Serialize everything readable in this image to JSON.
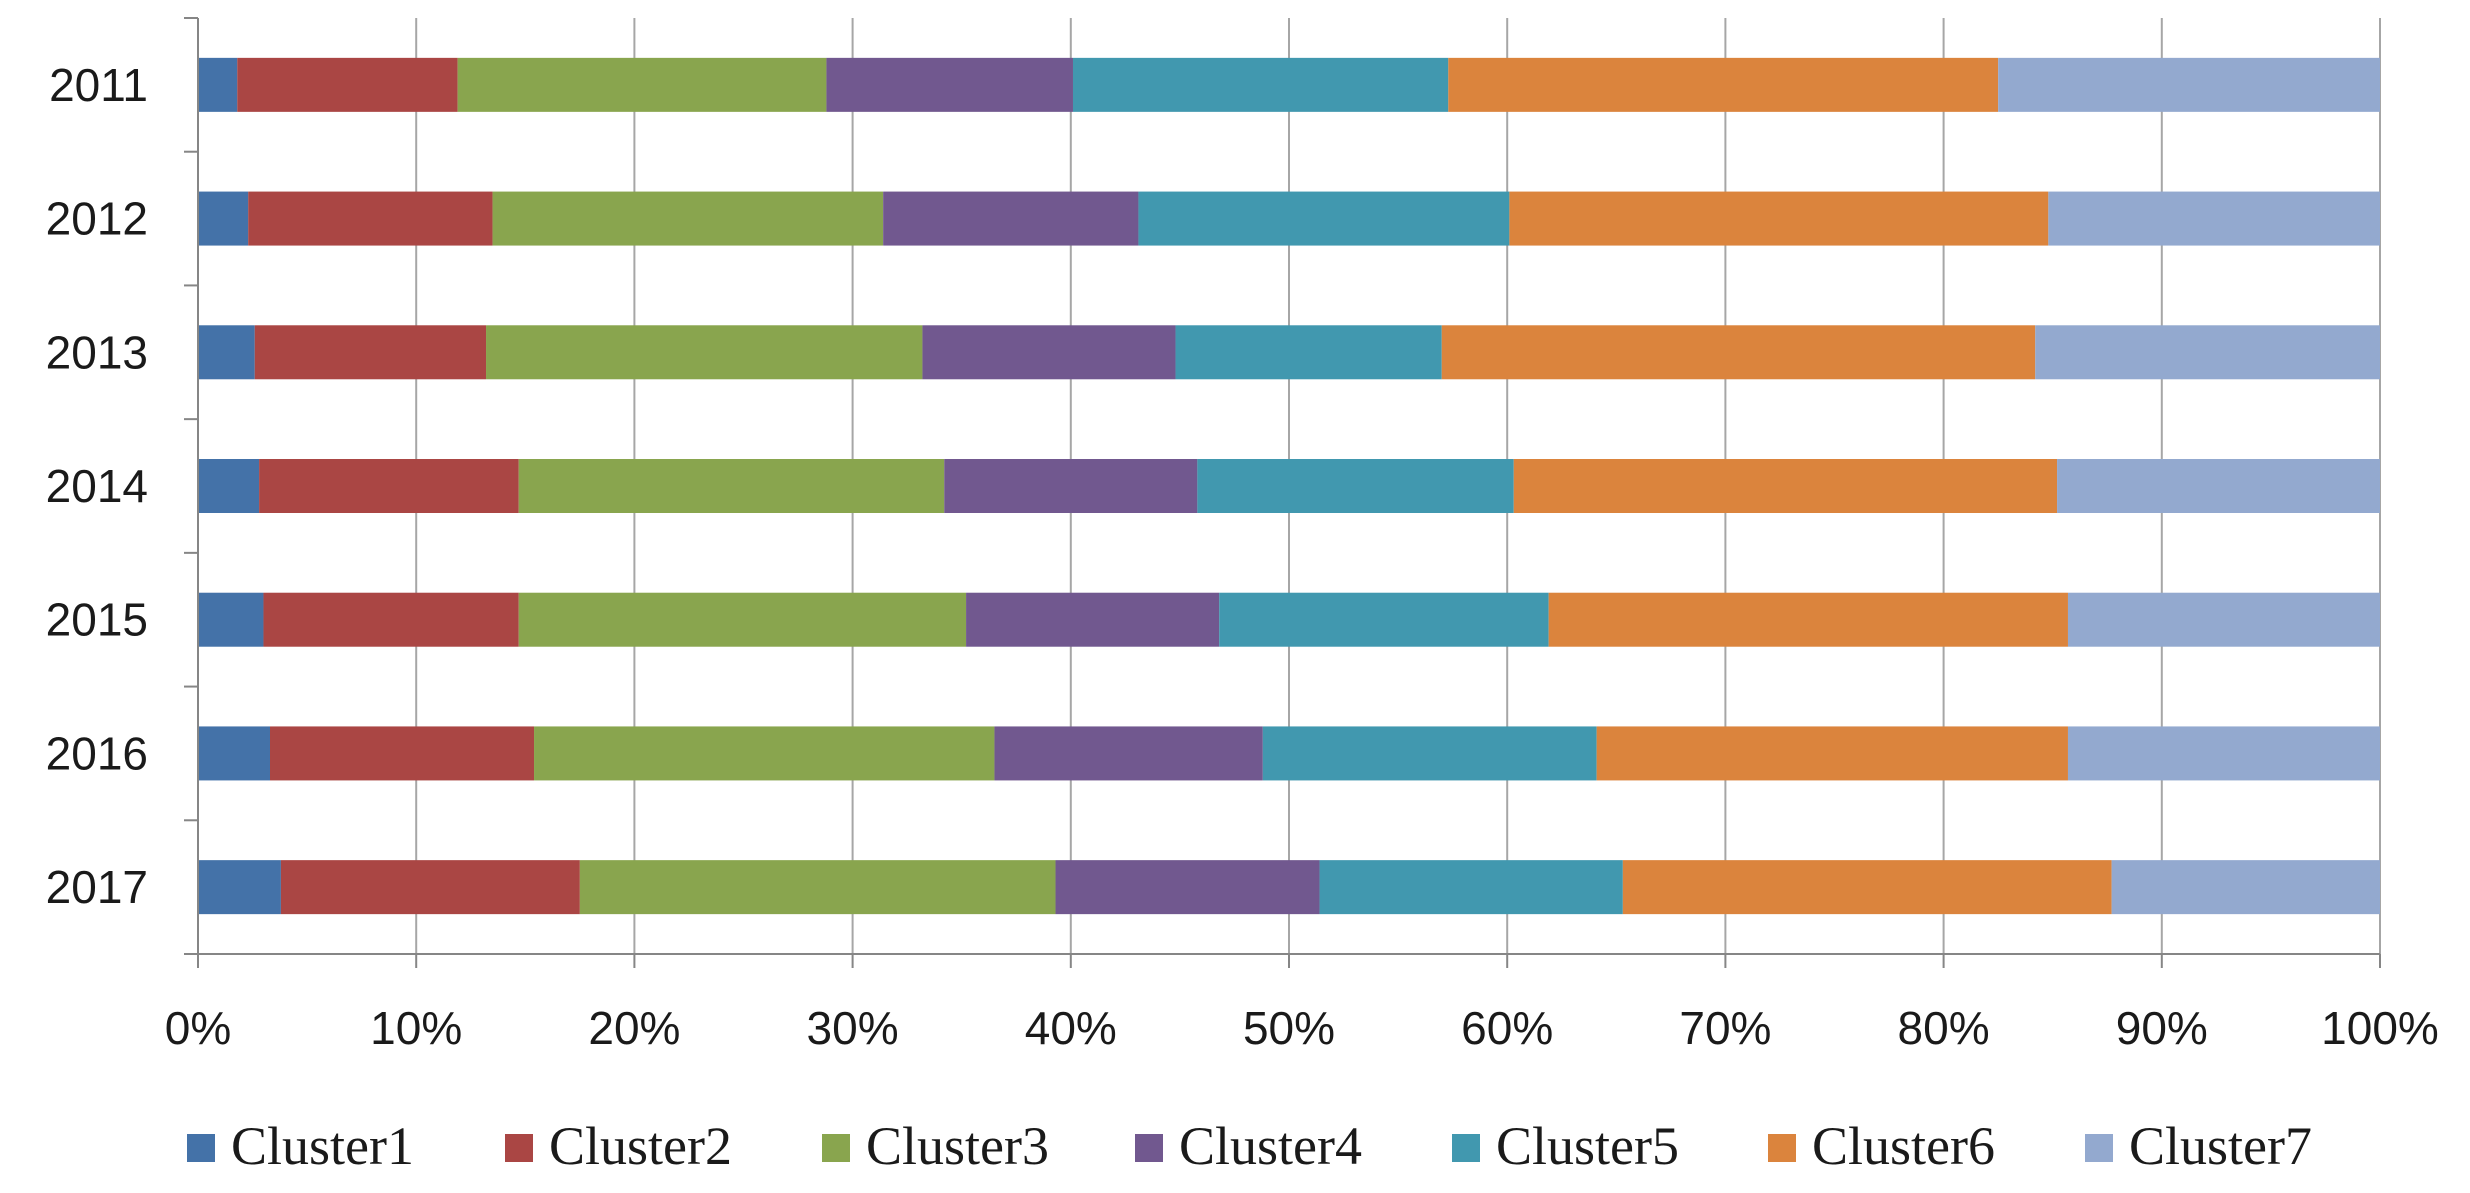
{
  "chart_data": {
    "type": "bar",
    "orientation": "horizontal",
    "stacking": "percent",
    "title": "",
    "xlabel": "",
    "ylabel": "",
    "xlim": [
      0,
      100
    ],
    "x_ticks": [
      "0%",
      "10%",
      "20%",
      "30%",
      "40%",
      "50%",
      "60%",
      "70%",
      "80%",
      "90%",
      "100%"
    ],
    "grid": true,
    "legend_position": "bottom",
    "categories": [
      "2011",
      "2012",
      "2013",
      "2014",
      "2015",
      "2016",
      "2017"
    ],
    "series": [
      {
        "name": "Cluster1",
        "color": "#4472a8",
        "values": [
          1.8,
          2.3,
          2.6,
          2.8,
          3.0,
          3.3,
          3.8
        ]
      },
      {
        "name": "Cluster2",
        "color": "#aa4644",
        "values": [
          10.1,
          11.2,
          10.6,
          11.9,
          11.7,
          12.1,
          13.7
        ]
      },
      {
        "name": "Cluster3",
        "color": "#89a54e",
        "values": [
          16.9,
          17.9,
          20.0,
          19.5,
          20.5,
          21.1,
          21.8
        ]
      },
      {
        "name": "Cluster4",
        "color": "#71588f",
        "values": [
          11.3,
          11.7,
          11.6,
          11.6,
          11.6,
          12.3,
          12.1
        ]
      },
      {
        "name": "Cluster5",
        "color": "#4198af",
        "values": [
          17.2,
          17.0,
          12.2,
          14.5,
          15.1,
          15.3,
          13.9
        ]
      },
      {
        "name": "Cluster6",
        "color": "#db843d",
        "values": [
          25.2,
          24.7,
          27.2,
          24.9,
          23.8,
          21.6,
          22.4
        ]
      },
      {
        "name": "Cluster7",
        "color": "#93a9cf",
        "values": [
          17.5,
          15.2,
          15.8,
          14.8,
          14.3,
          14.3,
          12.3
        ]
      }
    ]
  }
}
